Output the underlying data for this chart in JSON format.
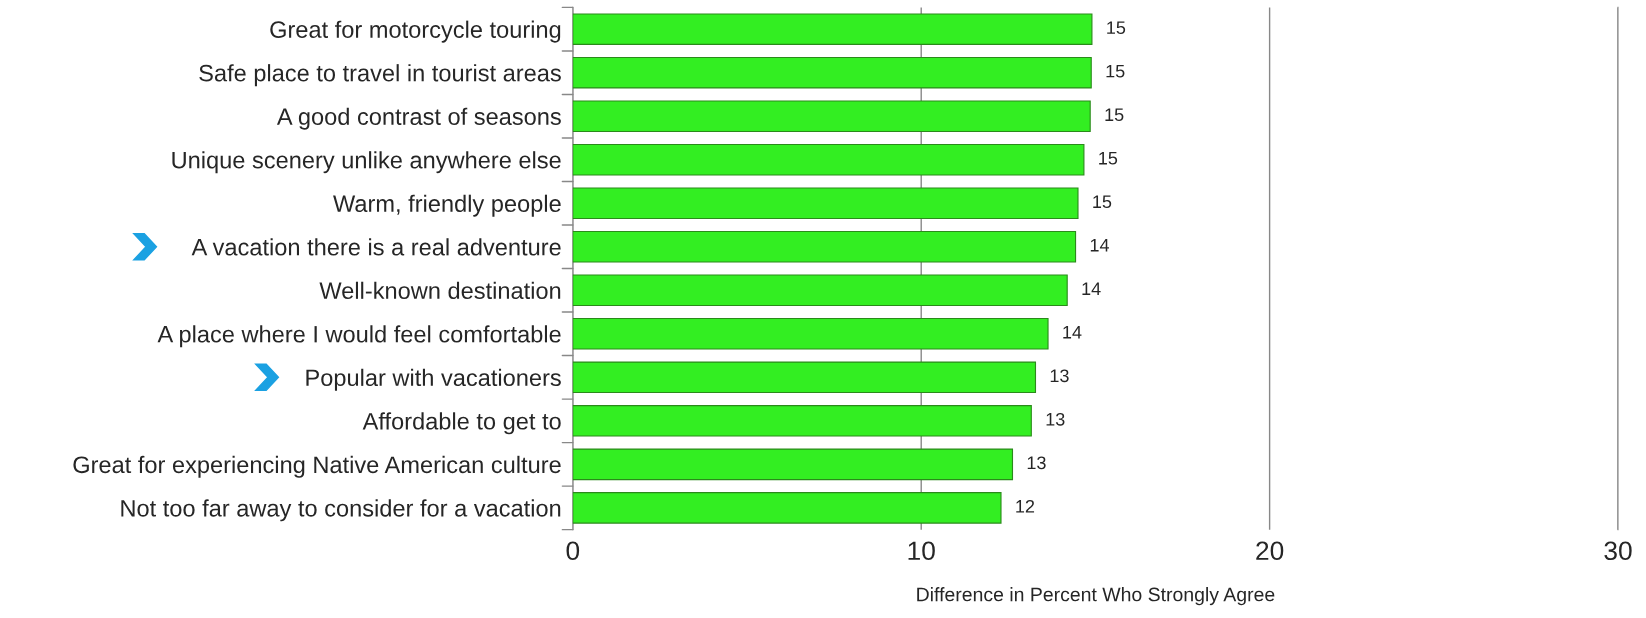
{
  "chart_data": {
    "type": "bar",
    "orientation": "horizontal",
    "categories": [
      "Great for motorcycle touring",
      "Safe place to travel in tourist areas",
      "A good contrast of seasons",
      "Unique scenery unlike anywhere else",
      "Warm, friendly people",
      "A vacation there is a real adventure",
      "Well-known destination",
      "A place where I would feel comfortable",
      "Popular with vacationers",
      "Affordable to get to",
      "Great for experiencing Native American culture",
      "Not too far away to consider for a vacation"
    ],
    "values": [
      14.9,
      14.88,
      14.85,
      14.67,
      14.5,
      14.43,
      14.19,
      13.64,
      13.28,
      13.16,
      12.62,
      12.29
    ],
    "value_labels": [
      "15",
      "15",
      "15",
      "15",
      "15",
      "14",
      "14",
      "14",
      "13",
      "13",
      "13",
      "12"
    ],
    "color": "#33ee22",
    "xlim": [
      0,
      30
    ],
    "xticks": [
      0,
      10,
      20,
      30
    ],
    "xlabel": "Difference in Percent Who Strongly Agree",
    "grid": "x",
    "legend": false
  }
}
